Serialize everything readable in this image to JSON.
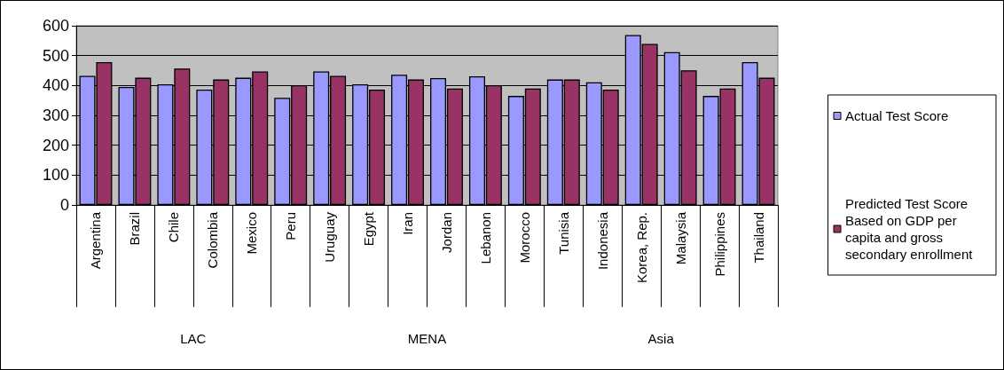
{
  "chart_data": {
    "type": "bar",
    "categories": [
      "Argentina",
      "Brazil",
      "Chile",
      "Colombia",
      "Mexico",
      "Peru",
      "Uruguay",
      "Egypt",
      "Iran",
      "Jordan",
      "Lebanon",
      "Morocco",
      "Tunisia",
      "Indonesia",
      "Korea, Rep.",
      "Malaysia",
      "Philippines",
      "Thailand"
    ],
    "series": [
      {
        "name": "Actual Test Score",
        "color": "#9999ff",
        "values": [
          432,
          395,
          404,
          386,
          426,
          359,
          447,
          404,
          436,
          425,
          431,
          365,
          420,
          411,
          569,
          512,
          365,
          478
        ]
      },
      {
        "name": "Predicted Test Score Based on GDP per capita and gross secondary enrollment",
        "color": "#993366",
        "values": [
          478,
          426,
          457,
          420,
          447,
          401,
          432,
          386,
          420,
          390,
          401,
          390,
          420,
          386,
          539,
          451,
          390,
          426
        ]
      }
    ],
    "ylim": [
      0,
      600
    ],
    "yticks": [
      0,
      100,
      200,
      300,
      400,
      500,
      600
    ],
    "grid": "y",
    "legend": "right",
    "annotations": [
      "LAC",
      "MENA",
      "Asia"
    ]
  }
}
